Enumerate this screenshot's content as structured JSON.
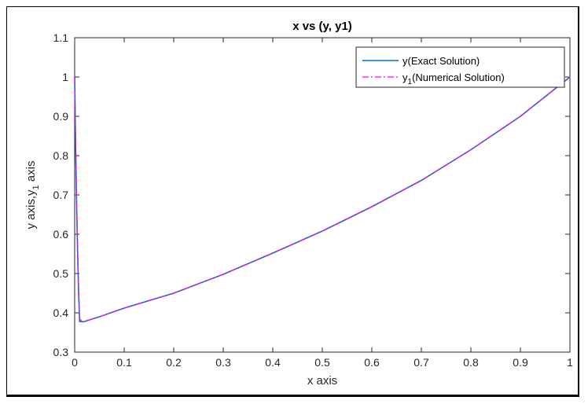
{
  "chart_data": {
    "type": "line",
    "title": "x vs (y, y1)",
    "xlabel": "x axis",
    "ylabel_parts": {
      "main": "y axis,y",
      "sub": "1",
      "tail": " axis"
    },
    "xlim": [
      0,
      1
    ],
    "ylim": [
      0.3,
      1.1
    ],
    "xticks": [
      "0",
      "0.1",
      "0.2",
      "0.3",
      "0.4",
      "0.5",
      "0.6",
      "0.7",
      "0.8",
      "0.9",
      "1"
    ],
    "yticks": [
      "0.3",
      "0.4",
      "0.5",
      "0.6",
      "0.7",
      "0.8",
      "0.9",
      "1",
      "1.1"
    ],
    "grid": false,
    "legend_position": "top-right",
    "series": [
      {
        "name": "y(Exact Solution)",
        "legend_parts": {
          "main": "y(Exact Solution)",
          "sub": "",
          "tail": ""
        },
        "color": "#0072BD",
        "style": "solid",
        "x": [
          0,
          0.002,
          0.004,
          0.006,
          0.008,
          0.01,
          0.015,
          0.02,
          0.05,
          0.1,
          0.2,
          0.3,
          0.4,
          0.5,
          0.6,
          0.7,
          0.8,
          0.9,
          1.0
        ],
        "y": [
          1.0,
          0.82,
          0.67,
          0.55,
          0.45,
          0.378,
          0.377,
          0.378,
          0.39,
          0.412,
          0.45,
          0.498,
          0.552,
          0.608,
          0.67,
          0.737,
          0.815,
          0.9,
          1.0
        ]
      },
      {
        "name": "y1(Numerical Solution)",
        "legend_parts": {
          "main": "y",
          "sub": "1",
          "tail": "(Numerical Solution)"
        },
        "color": "#FF00FF",
        "style": "dashdot",
        "x": [
          0,
          0.002,
          0.004,
          0.006,
          0.008,
          0.01,
          0.015,
          0.02,
          0.05,
          0.1,
          0.2,
          0.3,
          0.4,
          0.5,
          0.6,
          0.7,
          0.8,
          0.9,
          1.0
        ],
        "y": [
          1.0,
          0.83,
          0.68,
          0.56,
          0.46,
          0.385,
          0.378,
          0.378,
          0.39,
          0.412,
          0.45,
          0.498,
          0.552,
          0.608,
          0.67,
          0.737,
          0.815,
          0.9,
          1.0
        ]
      }
    ]
  }
}
